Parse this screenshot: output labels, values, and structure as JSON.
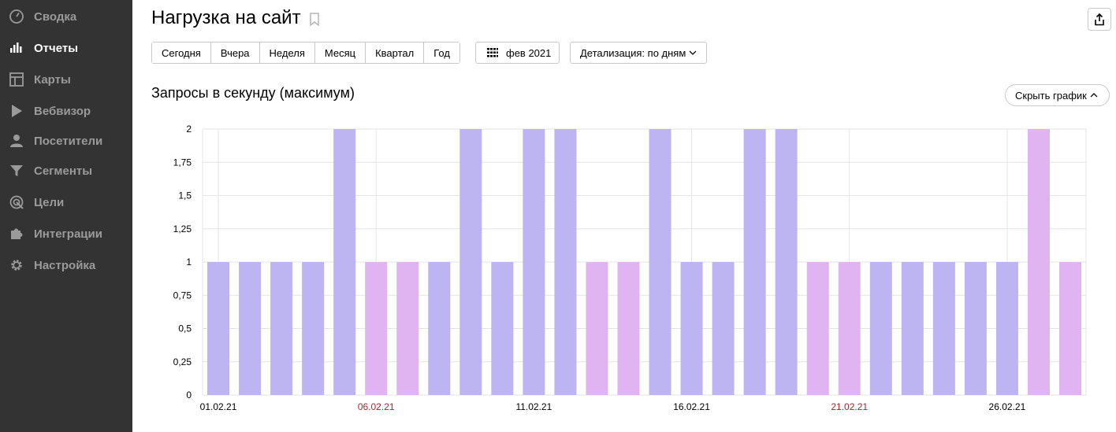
{
  "sidebar": {
    "items": [
      {
        "label": "Сводка",
        "icon": "gauge-icon",
        "active": false
      },
      {
        "label": "Отчеты",
        "icon": "bar-chart-icon",
        "active": true
      },
      {
        "label": "Карты",
        "icon": "map-layout-icon",
        "active": false
      },
      {
        "label": "Вебвизор",
        "icon": "play-icon",
        "active": false
      },
      {
        "label": "Посетители",
        "icon": "user-icon",
        "active": false
      },
      {
        "label": "Сегменты",
        "icon": "filter-icon",
        "active": false
      },
      {
        "label": "Цели",
        "icon": "target-icon",
        "active": false
      },
      {
        "label": "Интеграции",
        "icon": "puzzle-icon",
        "active": false
      },
      {
        "label": "Настройка",
        "icon": "gear-icon",
        "active": false
      }
    ]
  },
  "header": {
    "title": "Нагрузка на сайт"
  },
  "toolbar": {
    "periods": [
      "Сегодня",
      "Вчера",
      "Неделя",
      "Месяц",
      "Квартал",
      "Год"
    ],
    "date_label": "фев 2021",
    "detail_label": "Детализация: по дням"
  },
  "chart_section": {
    "title": "Запросы в секунду (максимум)",
    "hide_button": "Скрыть график"
  },
  "colors": {
    "weekday": "#bdb4f2",
    "weekend": "#dfb4f0",
    "weekend_label": "#a32929",
    "grid": "#e6e6e6"
  },
  "chart_data": {
    "type": "bar",
    "categories": [
      "01.02.21",
      "02.02.21",
      "03.02.21",
      "04.02.21",
      "05.02.21",
      "06.02.21",
      "07.02.21",
      "08.02.21",
      "09.02.21",
      "10.02.21",
      "11.02.21",
      "12.02.21",
      "13.02.21",
      "14.02.21",
      "15.02.21",
      "16.02.21",
      "17.02.21",
      "18.02.21",
      "19.02.21",
      "20.02.21",
      "21.02.21",
      "22.02.21",
      "23.02.21",
      "24.02.21",
      "25.02.21",
      "26.02.21",
      "27.02.21",
      "28.02.21"
    ],
    "values": [
      1,
      1,
      1,
      1,
      2,
      1,
      1,
      1,
      2,
      1,
      2,
      2,
      1,
      1,
      2,
      1,
      1,
      2,
      2,
      1,
      1,
      1,
      1,
      1,
      1,
      1,
      2,
      1
    ],
    "weekend": [
      false,
      false,
      false,
      false,
      false,
      true,
      true,
      false,
      false,
      false,
      false,
      false,
      true,
      true,
      false,
      false,
      false,
      false,
      false,
      true,
      true,
      false,
      false,
      false,
      false,
      false,
      true,
      true
    ],
    "x_tick_labels": [
      {
        "index": 0,
        "label": "01.02.21",
        "weekend": false
      },
      {
        "index": 5,
        "label": "06.02.21",
        "weekend": true
      },
      {
        "index": 10,
        "label": "11.02.21",
        "weekend": false
      },
      {
        "index": 15,
        "label": "16.02.21",
        "weekend": false
      },
      {
        "index": 20,
        "label": "21.02.21",
        "weekend": true
      },
      {
        "index": 25,
        "label": "26.02.21",
        "weekend": false
      }
    ],
    "y_ticks": [
      0,
      0.25,
      0.5,
      0.75,
      1,
      1.25,
      1.5,
      1.75,
      2
    ],
    "y_tick_labels": [
      "0",
      "0,25",
      "0,5",
      "0,75",
      "1",
      "1,25",
      "1,5",
      "1,75",
      "2"
    ],
    "ylim": [
      0,
      2
    ],
    "grid": true,
    "legend": "none"
  }
}
